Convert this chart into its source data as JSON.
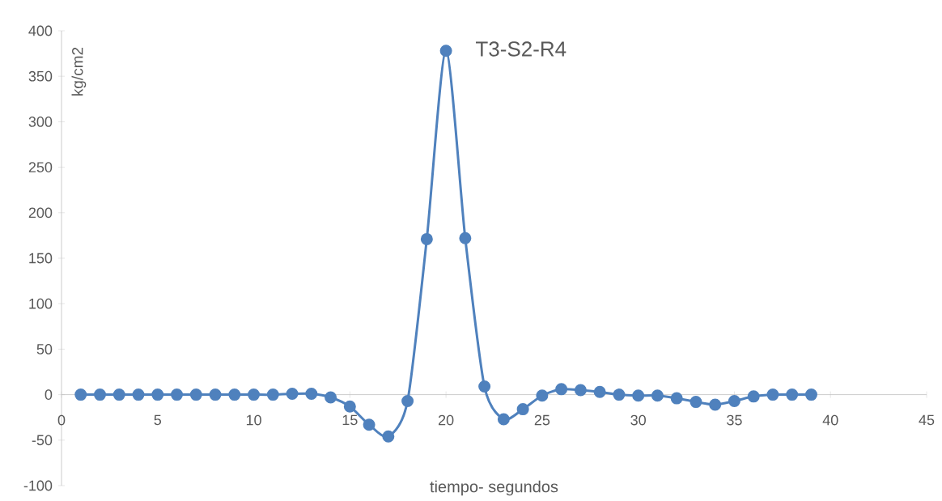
{
  "chart_data": {
    "type": "line",
    "title": "T3-S2-R4",
    "xlabel": "tiempo- segundos",
    "ylabel": "kg/cm2",
    "x": [
      1,
      2,
      3,
      4,
      5,
      6,
      7,
      8,
      9,
      10,
      11,
      12,
      13,
      14,
      15,
      16,
      17,
      18,
      19,
      20,
      21,
      22,
      23,
      24,
      25,
      26,
      27,
      28,
      29,
      30,
      31,
      32,
      33,
      34,
      35,
      36,
      37,
      38,
      39
    ],
    "values": [
      0,
      0,
      0,
      0,
      0,
      0,
      0,
      0,
      0,
      0,
      0,
      1,
      1,
      -3,
      -13,
      -33,
      -46,
      -7,
      171,
      378,
      172,
      9,
      -27,
      -16,
      -1,
      6,
      5,
      3,
      0,
      -1,
      -1,
      -4,
      -8,
      -11,
      -7,
      -2,
      0,
      0,
      0
    ],
    "color": "#4f81bd",
    "marker": "circle",
    "line_style": "solid",
    "grid": false,
    "xlim": [
      0,
      45
    ],
    "ylim": [
      -100,
      400
    ],
    "xticks": [
      0,
      5,
      10,
      15,
      20,
      25,
      30,
      35,
      40,
      45
    ],
    "yticks": [
      -100,
      -50,
      0,
      50,
      100,
      150,
      200,
      250,
      300,
      350,
      400
    ]
  }
}
